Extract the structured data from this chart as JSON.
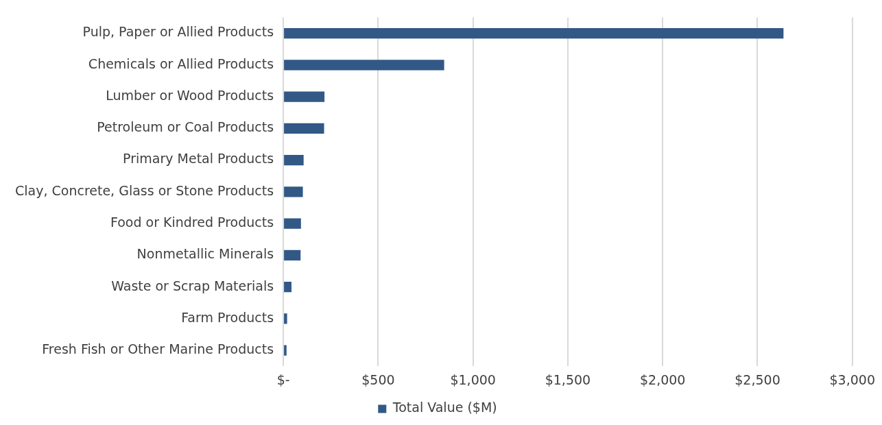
{
  "chart_data": {
    "type": "bar",
    "orientation": "horizontal",
    "categories": [
      "Pulp, Paper or Allied Products",
      "Chemicals or Allied Products",
      "Lumber or Wood Products",
      "Petroleum or Coal Products",
      "Primary Metal Products",
      "Clay, Concrete, Glass or Stone Products",
      "Food or Kindred Products",
      "Nonmetallic Minerals",
      "Waste or Scrap Materials",
      "Farm Products",
      "Fresh Fish or Other Marine Products"
    ],
    "series": [
      {
        "name": "Total Value ($M)",
        "color": "#325886",
        "values": [
          2637,
          848,
          217,
          215,
          107,
          103,
          93,
          91,
          43,
          20,
          17
        ]
      }
    ],
    "xlim": [
      0,
      3000
    ],
    "xticks": [
      {
        "value": 0,
        "label": "$-"
      },
      {
        "value": 500,
        "label": "$500"
      },
      {
        "value": 1000,
        "label": "$1,000"
      },
      {
        "value": 1500,
        "label": "$1,500"
      },
      {
        "value": 2000,
        "label": "$2,000"
      },
      {
        "value": 2500,
        "label": "$2,500"
      },
      {
        "value": 3000,
        "label": "$3,000"
      }
    ],
    "grid": "x",
    "legend": "bottom"
  }
}
